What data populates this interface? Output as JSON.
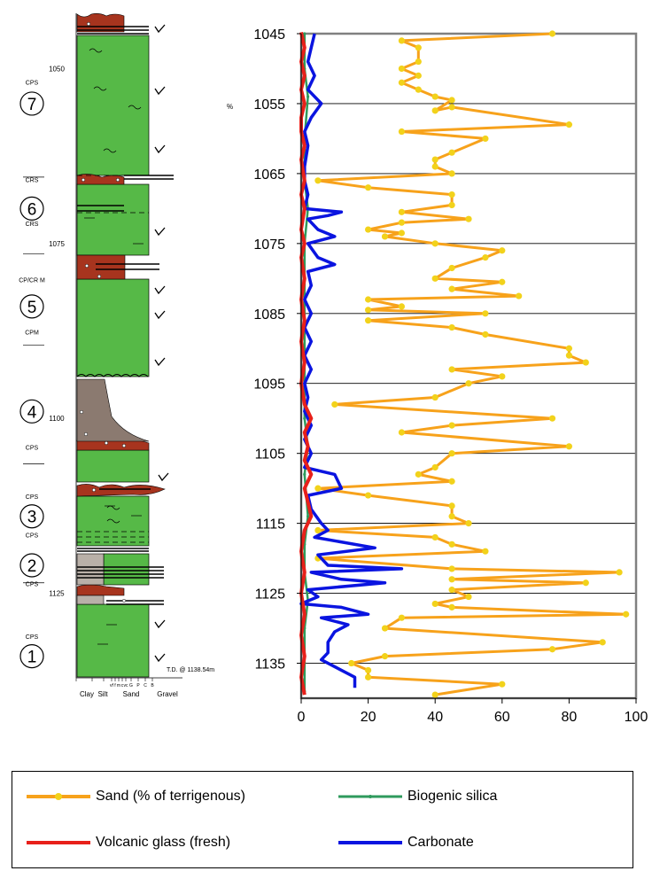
{
  "chart_data": {
    "type": "line",
    "orientation": "depth-vertical",
    "xlim": [
      0,
      100
    ],
    "ylim": [
      1045,
      1140
    ],
    "xticks": [
      "0",
      "20",
      "40",
      "60",
      "80",
      "100"
    ],
    "yticks": [
      "1045",
      "1055",
      "1065",
      "1075",
      "1085",
      "1095",
      "1105",
      "1115",
      "1125",
      "1135"
    ],
    "grid": "horizontal",
    "legend_position": "bottom",
    "percent_symbol": "%",
    "series": [
      {
        "name": "Sand (% of terrigenous)",
        "color": "#f7a21b",
        "marker_color": "#f2d21b",
        "points": [
          [
            75,
            1045
          ],
          [
            30,
            1046
          ],
          [
            35,
            1047
          ],
          [
            35,
            1049
          ],
          [
            30,
            1050
          ],
          [
            35,
            1051
          ],
          [
            30,
            1052
          ],
          [
            35,
            1053
          ],
          [
            40,
            1054
          ],
          [
            45,
            1054.5
          ],
          [
            40,
            1056
          ],
          [
            45,
            1055.5
          ],
          [
            80,
            1058
          ],
          [
            30,
            1059
          ],
          [
            55,
            1060
          ],
          [
            45,
            1062
          ],
          [
            40,
            1063
          ],
          [
            40,
            1064
          ],
          [
            45,
            1065
          ],
          [
            5,
            1066
          ],
          [
            20,
            1067
          ],
          [
            45,
            1068
          ],
          [
            45,
            1069.5
          ],
          [
            30,
            1070.5
          ],
          [
            50,
            1071.5
          ],
          [
            30,
            1072
          ],
          [
            20,
            1073
          ],
          [
            30,
            1073.5
          ],
          [
            25,
            1074
          ],
          [
            40,
            1075
          ],
          [
            60,
            1076
          ],
          [
            55,
            1077
          ],
          [
            45,
            1078.5
          ],
          [
            40,
            1080
          ],
          [
            60,
            1080.5
          ],
          [
            45,
            1081.5
          ],
          [
            65,
            1082.5
          ],
          [
            20,
            1083
          ],
          [
            30,
            1084
          ],
          [
            20,
            1084.5
          ],
          [
            55,
            1085
          ],
          [
            20,
            1086
          ],
          [
            45,
            1087
          ],
          [
            55,
            1088
          ],
          [
            80,
            1090
          ],
          [
            80,
            1091
          ],
          [
            85,
            1092
          ],
          [
            45,
            1093
          ],
          [
            60,
            1094
          ],
          [
            50,
            1095
          ],
          [
            40,
            1097
          ],
          [
            10,
            1098
          ],
          [
            75,
            1100
          ],
          [
            45,
            1101
          ],
          [
            30,
            1102
          ],
          [
            80,
            1104
          ],
          [
            45,
            1105
          ],
          [
            40,
            1107
          ],
          [
            35,
            1108
          ],
          [
            45,
            1109
          ],
          [
            5,
            1110
          ],
          [
            20,
            1111
          ],
          [
            45,
            1112.5
          ],
          [
            45,
            1114
          ],
          [
            50,
            1115
          ],
          [
            5,
            1116
          ],
          [
            40,
            1117
          ],
          [
            45,
            1118
          ],
          [
            55,
            1119
          ],
          [
            5,
            1120
          ],
          [
            45,
            1121.5
          ],
          [
            95,
            1122
          ],
          [
            45,
            1123
          ],
          [
            85,
            1123.5
          ],
          [
            45,
            1124.5
          ],
          [
            50,
            1125.5
          ],
          [
            40,
            1126.5
          ],
          [
            45,
            1127
          ],
          [
            97,
            1128
          ],
          [
            30,
            1128.5
          ],
          [
            25,
            1130
          ],
          [
            90,
            1132
          ],
          [
            75,
            1133
          ],
          [
            25,
            1134
          ],
          [
            15,
            1135
          ],
          [
            20,
            1136
          ],
          [
            20,
            1137
          ],
          [
            60,
            1138
          ],
          [
            40,
            1139.5
          ]
        ]
      },
      {
        "name": "Biogenic silica",
        "color": "#2e9a5c",
        "marker_color": "#2e9a5c",
        "points": [
          [
            1,
            1045
          ],
          [
            1,
            1050
          ],
          [
            2,
            1054
          ],
          [
            1,
            1060
          ],
          [
            1,
            1066
          ],
          [
            2,
            1070
          ],
          [
            1,
            1075
          ],
          [
            1,
            1080
          ],
          [
            1,
            1085
          ],
          [
            1,
            1090
          ],
          [
            1,
            1095
          ],
          [
            1,
            1100
          ],
          [
            2,
            1104
          ],
          [
            1,
            1108
          ],
          [
            2,
            1114
          ],
          [
            1,
            1118
          ],
          [
            1,
            1122
          ],
          [
            2,
            1126
          ],
          [
            1,
            1130
          ],
          [
            1,
            1135
          ],
          [
            1,
            1139
          ]
        ]
      },
      {
        "name": "Volcanic glass (fresh)",
        "color": "#e8201a",
        "marker_color": "#e8201a",
        "points": [
          [
            0,
            1044.8
          ],
          [
            1,
            1047
          ],
          [
            0,
            1049
          ],
          [
            1,
            1051
          ],
          [
            0,
            1053
          ],
          [
            1,
            1055
          ],
          [
            0,
            1057
          ],
          [
            0,
            1059
          ],
          [
            1,
            1061
          ],
          [
            0,
            1063
          ],
          [
            1,
            1066
          ],
          [
            0,
            1068
          ],
          [
            1,
            1070
          ],
          [
            0,
            1073
          ],
          [
            1,
            1075
          ],
          [
            0,
            1077
          ],
          [
            1,
            1080
          ],
          [
            0,
            1083
          ],
          [
            1,
            1086
          ],
          [
            0,
            1089
          ],
          [
            1,
            1092
          ],
          [
            0,
            1095
          ],
          [
            1,
            1098
          ],
          [
            3,
            1100
          ],
          [
            1,
            1102
          ],
          [
            2,
            1104
          ],
          [
            1,
            1106
          ],
          [
            3,
            1108
          ],
          [
            1,
            1110
          ],
          [
            2,
            1112
          ],
          [
            3,
            1114
          ],
          [
            1,
            1116
          ],
          [
            0,
            1119
          ],
          [
            1,
            1122
          ],
          [
            0,
            1125
          ],
          [
            1,
            1128
          ],
          [
            0,
            1131
          ],
          [
            1,
            1134
          ],
          [
            0,
            1137
          ],
          [
            1,
            1139.5
          ]
        ]
      },
      {
        "name": "Carbonate",
        "color": "#0a14e0",
        "marker_color": "#0a14e0",
        "points": [
          [
            4,
            1045
          ],
          [
            3,
            1047
          ],
          [
            2,
            1049
          ],
          [
            4,
            1051
          ],
          [
            2,
            1053
          ],
          [
            6,
            1055
          ],
          [
            3,
            1057
          ],
          [
            1,
            1059
          ],
          [
            2,
            1061
          ],
          [
            1,
            1064
          ],
          [
            1,
            1066
          ],
          [
            2,
            1068
          ],
          [
            1,
            1070
          ],
          [
            12,
            1070.5
          ],
          [
            8,
            1071
          ],
          [
            2,
            1071.5
          ],
          [
            5,
            1073
          ],
          [
            10,
            1074
          ],
          [
            2,
            1075
          ],
          [
            5,
            1077
          ],
          [
            10,
            1078
          ],
          [
            2,
            1079
          ],
          [
            3,
            1081
          ],
          [
            1,
            1083
          ],
          [
            3,
            1085
          ],
          [
            1,
            1087
          ],
          [
            3,
            1089
          ],
          [
            1,
            1091
          ],
          [
            3,
            1093
          ],
          [
            1,
            1095
          ],
          [
            2,
            1097
          ],
          [
            1,
            1099
          ],
          [
            3,
            1101
          ],
          [
            1,
            1103
          ],
          [
            3,
            1105
          ],
          [
            1,
            1107
          ],
          [
            10,
            1108
          ],
          [
            12,
            1110
          ],
          [
            2,
            1111
          ],
          [
            3,
            1113
          ],
          [
            6,
            1115
          ],
          [
            8,
            1116
          ],
          [
            4,
            1117
          ],
          [
            22,
            1118.5
          ],
          [
            5,
            1119.5
          ],
          [
            8,
            1121
          ],
          [
            30,
            1121.5
          ],
          [
            3,
            1122
          ],
          [
            12,
            1123
          ],
          [
            25,
            1123.5
          ],
          [
            2,
            1124.5
          ],
          [
            5,
            1125.5
          ],
          [
            0,
            1126.5
          ],
          [
            12,
            1127
          ],
          [
            20,
            1128
          ],
          [
            6,
            1128.5
          ],
          [
            14,
            1129.5
          ],
          [
            10,
            1130.5
          ],
          [
            8,
            1132
          ],
          [
            8,
            1133.5
          ],
          [
            6,
            1134.5
          ],
          [
            12,
            1136
          ],
          [
            16,
            1137
          ],
          [
            16,
            1138.5
          ]
        ]
      }
    ]
  },
  "column": {
    "grain_axis_classes": [
      "vf",
      "f",
      "m",
      "c",
      "vc",
      "G",
      "P",
      "C",
      "B"
    ],
    "grain_axis_groups": [
      "Clay",
      "Silt",
      "Sand",
      "Gravel"
    ],
    "td_label": "T.D. @ 1138.54m",
    "depth_labels": [
      {
        "depth": 1050,
        "text": "1050"
      },
      {
        "depth": 1075,
        "text": "1075"
      },
      {
        "depth": 1100,
        "text": "1100"
      },
      {
        "depth": 1125,
        "text": "1125"
      }
    ],
    "units": [
      {
        "number": "7",
        "depth": 1055
      },
      {
        "number": "6",
        "depth": 1070
      },
      {
        "number": "5",
        "depth": 1084
      },
      {
        "number": "4",
        "depth": 1099
      },
      {
        "number": "3",
        "depth": 1114
      },
      {
        "number": "2",
        "depth": 1121
      },
      {
        "number": "1",
        "depth": 1134
      }
    ],
    "facies_labels": [
      {
        "text": "CPS",
        "depth": 1052.3
      },
      {
        "text": "CRS",
        "depth": 1066.2
      },
      {
        "text": "CRS",
        "depth": 1072.5
      },
      {
        "text": "CP/CR M",
        "depth": 1080.5
      },
      {
        "text": "CPM",
        "depth": 1088
      },
      {
        "text": "CPS",
        "depth": 1104.5
      },
      {
        "text": "CPS",
        "depth": 1111.5
      },
      {
        "text": "CPS",
        "depth": 1117
      },
      {
        "text": "CPS",
        "depth": 1124
      },
      {
        "text": "CPS",
        "depth": 1131.5
      }
    ],
    "colors": {
      "mud": "#56b947",
      "diamict": "#a7341e",
      "gravel": "#8b7a70",
      "silt": "#b9b0a8"
    }
  }
}
